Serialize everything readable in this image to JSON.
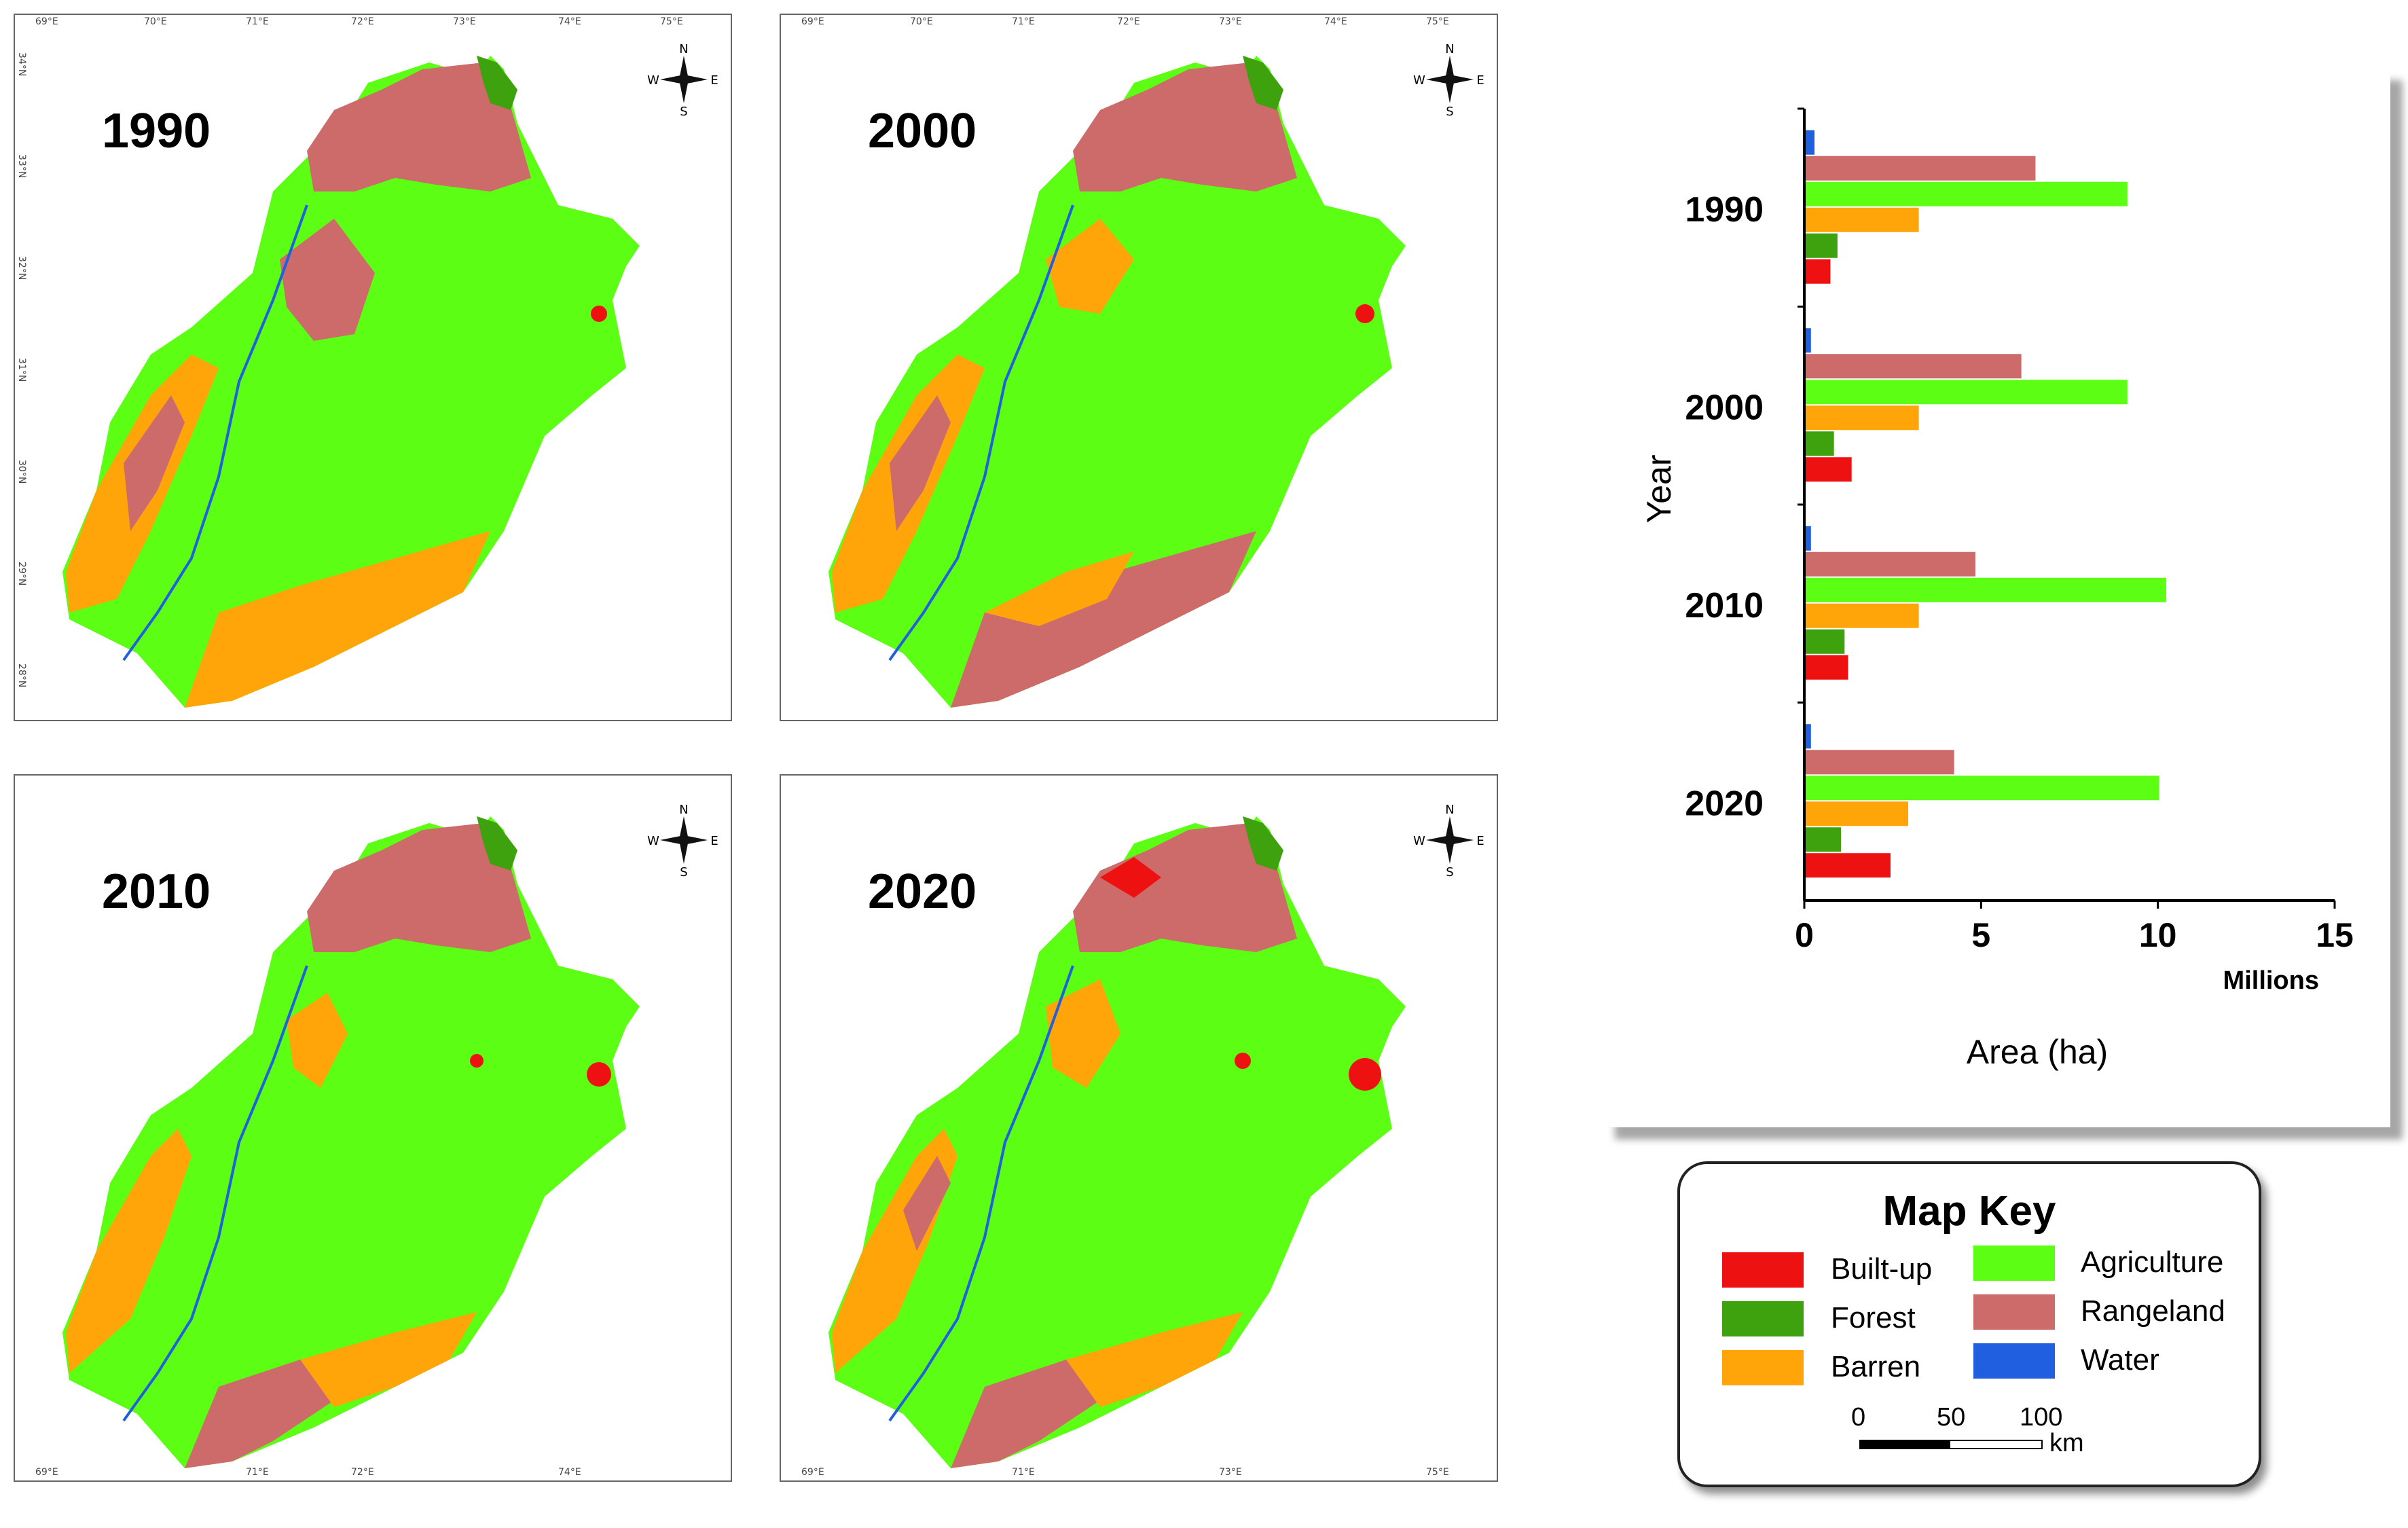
{
  "maps": [
    {
      "year": "1990"
    },
    {
      "year": "2000"
    },
    {
      "year": "2010"
    },
    {
      "year": "2020"
    }
  ],
  "lon_ticks": [
    "69°E",
    "70°E",
    "71°E",
    "72°E",
    "73°E",
    "74°E",
    "75°E"
  ],
  "lat_ticks": [
    "34°N",
    "33°N",
    "32°N",
    "31°N",
    "30°N",
    "29°N",
    "28°N"
  ],
  "compass": {
    "n": "N",
    "s": "S",
    "e": "E",
    "w": "W"
  },
  "chart_data": {
    "type": "bar",
    "orientation": "horizontal",
    "categories": [
      "1990",
      "2000",
      "2010",
      "2020"
    ],
    "series": [
      {
        "name": "Water",
        "color": "#1f5fe0",
        "values": [
          0.25,
          0.15,
          0.15,
          0.15
        ]
      },
      {
        "name": "Rangeland",
        "color": "#cd6a6a",
        "values": [
          6.5,
          6.1,
          4.8,
          4.2
        ]
      },
      {
        "name": "Agriculture",
        "color": "#5cff14",
        "values": [
          9.1,
          9.1,
          10.2,
          10.0
        ]
      },
      {
        "name": "Barren",
        "color": "#ffa50a",
        "values": [
          3.2,
          3.2,
          3.2,
          2.9
        ]
      },
      {
        "name": "Forest",
        "color": "#3ea10e",
        "values": [
          0.9,
          0.8,
          1.1,
          1.0
        ]
      },
      {
        "name": "Built-up",
        "color": "#ee1111",
        "values": [
          0.7,
          1.3,
          1.2,
          2.4
        ]
      }
    ],
    "xlim": [
      0,
      15
    ],
    "xticks": [
      "0",
      "5",
      "10",
      "15"
    ],
    "x_unit": "Millions",
    "xlabel": "Area (ha)",
    "ylabel": "Year"
  },
  "legend": {
    "title": "Map Key",
    "items": [
      {
        "label": "Built-up",
        "color": "#ee1111"
      },
      {
        "label": "Forest",
        "color": "#3ea10e"
      },
      {
        "label": "Barren",
        "color": "#ffa50a"
      },
      {
        "label": "Agriculture",
        "color": "#5cff14"
      },
      {
        "label": "Rangeland",
        "color": "#cd6a6a"
      },
      {
        "label": "Water",
        "color": "#1f5fe0"
      }
    ],
    "scale": {
      "labels": [
        "0",
        "50",
        "100"
      ],
      "unit": "km"
    }
  }
}
